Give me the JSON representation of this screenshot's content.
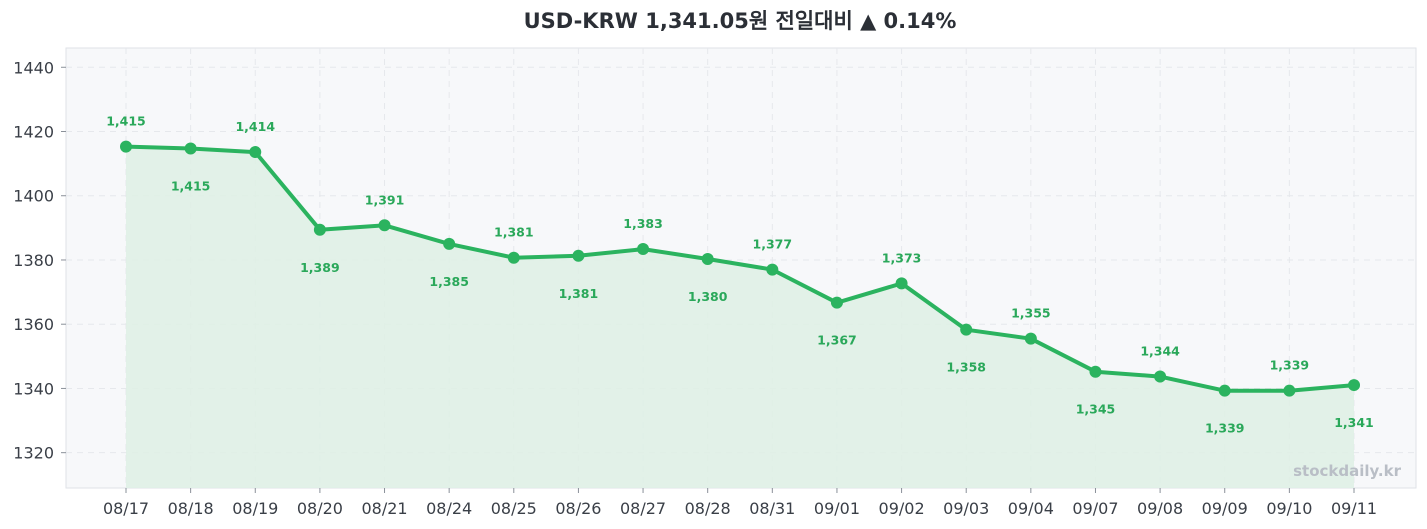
{
  "header": {
    "title": "USD-KRW  1,341.05원  전일대비 ▲ 0.14%"
  },
  "watermark": "stockdaily.kr",
  "colors": {
    "line": "#2bb35f",
    "area": "#dff0e6",
    "plot_bg": "#f7f8fa",
    "grid": "#e6e8ec",
    "label": "#2aa85a"
  },
  "chart_data": {
    "type": "line",
    "x": [
      "08/17",
      "08/18",
      "08/19",
      "08/20",
      "08/21",
      "08/24",
      "08/25",
      "08/26",
      "08/27",
      "08/28",
      "08/31",
      "09/01",
      "09/02",
      "09/03",
      "09/04",
      "09/07",
      "09/08",
      "09/09",
      "09/10",
      "09/11"
    ],
    "y": [
      1415.3,
      1414.7,
      1413.6,
      1389.4,
      1390.8,
      1385.0,
      1380.7,
      1381.3,
      1383.4,
      1380.3,
      1377.0,
      1366.7,
      1372.7,
      1358.3,
      1355.5,
      1345.2,
      1343.7,
      1339.3,
      1339.3,
      1341.05
    ],
    "labels": [
      "1,415",
      "1,415",
      "1,414",
      "1,389",
      "1,391",
      "1,385",
      "1,381",
      "1,381",
      "1,383",
      "1,380",
      "1,377",
      "1,367",
      "1,373",
      "1,358",
      "1,355",
      "1,345",
      "1,344",
      "1,339",
      "1,339",
      "1,341"
    ],
    "label_pos": [
      "above",
      "below",
      "above",
      "below",
      "above",
      "below",
      "above",
      "below",
      "above",
      "below",
      "above",
      "below",
      "above",
      "below",
      "above",
      "below",
      "above",
      "below",
      "above",
      "below"
    ],
    "yticks": [
      1320,
      1340,
      1360,
      1380,
      1400,
      1420,
      1440
    ],
    "ylim": [
      1309,
      1446
    ],
    "grid": true,
    "area_fill": true
  }
}
